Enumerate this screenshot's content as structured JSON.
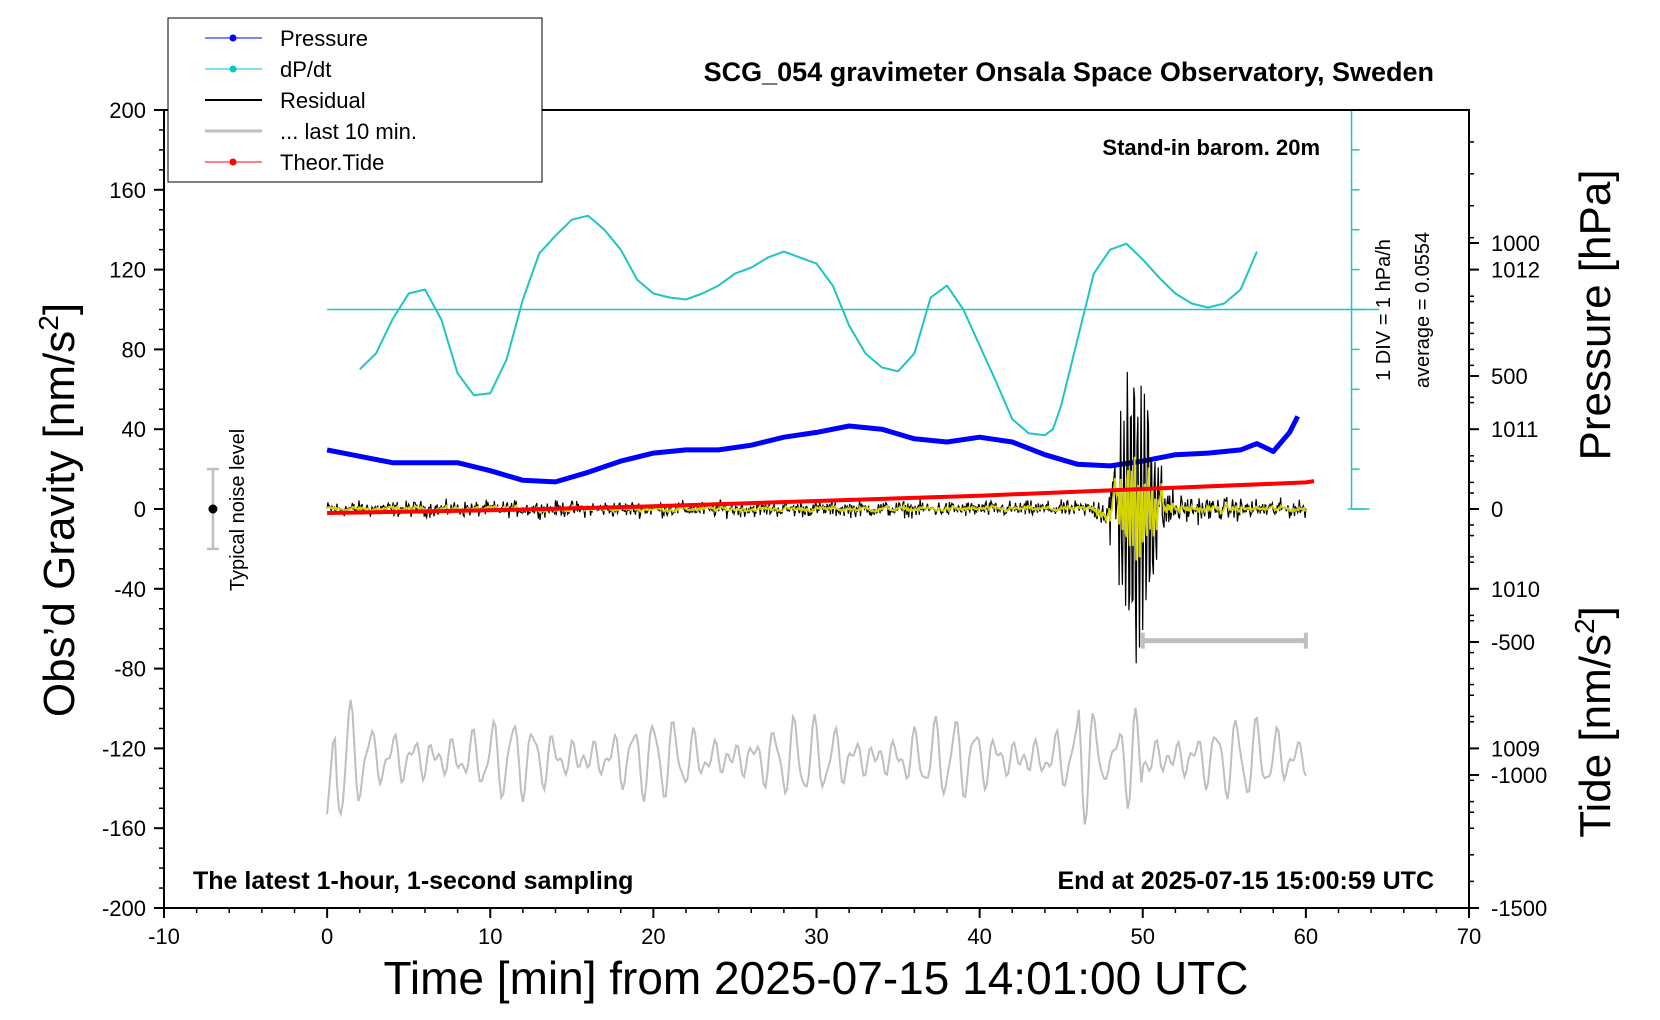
{
  "chart_data": {
    "type": "line",
    "title": "SCG_054 gravimeter Onsala Space Observatory, Sweden",
    "xlabel": "Time [min] from 2025-07-15 14:01:00 UTC",
    "ylabel_left": "Obs’d Gravity [nm/s",
    "ylabel_left_sup": "2",
    "ylabel_left_end": "]",
    "ylabel_right_pressure": "Pressure [hPa]",
    "ylabel_right_tide": "Tide [nm/s",
    "ylabel_right_tide_sup": "2",
    "ylabel_right_tide_end": "]",
    "xlim": [
      -10,
      70
    ],
    "ylim_left": [
      -200,
      200
    ],
    "pressure_lim": [
      1008,
      1013
    ],
    "tide_lim": [
      -1500,
      1500
    ],
    "x_ticks": [
      "-10",
      "0",
      "10",
      "20",
      "30",
      "40",
      "50",
      "60",
      "70"
    ],
    "y_left_ticks": [
      "200",
      "160",
      "120",
      "80",
      "40",
      "0",
      "-40",
      "-80",
      "-120",
      "-160",
      "-200"
    ],
    "pressure_ticks": [
      "1012",
      "1011",
      "1010",
      "1009"
    ],
    "tide_ticks": [
      "1000",
      "500",
      "0",
      "-500",
      "-1000",
      "-1500"
    ],
    "annotations": {
      "stand_in": "Stand-in barom. 20m",
      "div": "1 DIV = 1 hPa/h",
      "average": "average = 0.0554",
      "noise": "Typical noise level",
      "latest": "The latest 1-hour, 1-second sampling",
      "end": "End at 2025-07-15 15:00:59 UTC"
    },
    "legend": [
      {
        "label": "Pressure",
        "color": "#0000ff",
        "marker": true
      },
      {
        "label": "dP/dt",
        "color": "#00c8c8",
        "marker": true
      },
      {
        "label": "Residual",
        "color": "#000000",
        "marker": false
      },
      {
        "label": "... last 10 min.",
        "color": "#bfbfbf",
        "marker": false
      },
      {
        "label": "Theor.Tide",
        "color": "#ff0000",
        "marker": true
      }
    ],
    "colors": {
      "pressure": "#0000ff",
      "dpdt": "#20c4c4",
      "residual": "#000000",
      "residual_smooth": "#d4d400",
      "last10": "#bfbfbf",
      "tide": "#ff0000"
    },
    "series": {
      "pressure": {
        "x": [
          0,
          2,
          4,
          6,
          8,
          10,
          12,
          14,
          16,
          18,
          20,
          22,
          24,
          26,
          28,
          30,
          32,
          34,
          36,
          38,
          40,
          42,
          44,
          46,
          48,
          50,
          52,
          54,
          56,
          57,
          58,
          59,
          59.5
        ],
        "values": [
          1010.87,
          1010.83,
          1010.79,
          1010.79,
          1010.79,
          1010.74,
          1010.68,
          1010.67,
          1010.73,
          1010.8,
          1010.85,
          1010.87,
          1010.87,
          1010.9,
          1010.95,
          1010.98,
          1011.02,
          1011.0,
          1010.94,
          1010.92,
          1010.95,
          1010.92,
          1010.84,
          1010.78,
          1010.77,
          1010.8,
          1010.84,
          1010.85,
          1010.87,
          1010.91,
          1010.86,
          1010.98,
          1011.08
        ]
      },
      "dpdt": {
        "x": [
          2,
          3,
          4,
          5,
          6,
          7,
          8,
          9,
          10,
          11,
          12,
          13,
          14,
          15,
          16,
          17,
          18,
          19,
          20,
          21,
          22,
          23,
          24,
          25,
          26,
          27,
          28,
          29,
          30,
          31,
          32,
          33,
          34,
          35,
          36,
          37,
          38,
          39,
          40,
          41,
          42,
          43,
          44,
          44.5,
          45,
          46,
          47,
          48,
          49,
          50,
          51,
          52,
          53,
          54,
          55,
          56,
          57
        ],
        "values": [
          70,
          78,
          95,
          108,
          110,
          95,
          68,
          57,
          58,
          75,
          105,
          128,
          137,
          145,
          147,
          140,
          130,
          115,
          108,
          106,
          105,
          108,
          112,
          118,
          121,
          126,
          129,
          126,
          123,
          112,
          92,
          78,
          71,
          69,
          78,
          106,
          112,
          100,
          82,
          64,
          45,
          38,
          37,
          40,
          52,
          85,
          118,
          130,
          133,
          125,
          116,
          108,
          103,
          101,
          103,
          110,
          129
        ]
      },
      "tide": {
        "x": [
          0,
          10,
          20,
          30,
          40,
          50,
          60,
          60.5
        ],
        "values": [
          -15,
          -5,
          10,
          30,
          50,
          75,
          100,
          105
        ]
      }
    },
    "noise_bar": {
      "x": -7,
      "center": 0,
      "half_range": 20
    },
    "last10_bar": {
      "x_start": 50,
      "x_end": 60,
      "y": -66
    }
  }
}
